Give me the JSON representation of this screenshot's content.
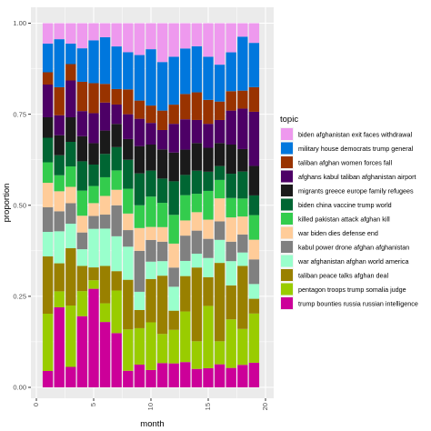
{
  "chart_data": {
    "type": "bar",
    "stacked": true,
    "title": "",
    "xlabel": "month",
    "ylabel": "proportion",
    "xlim": [
      0,
      20
    ],
    "ylim": [
      0,
      1
    ],
    "x_ticks": [
      "0",
      "5",
      "10",
      "15",
      "20"
    ],
    "y_ticks": [
      "0.00",
      "0.25",
      "0.50",
      "0.75",
      "1.00"
    ],
    "legend_title": "topic",
    "legend_position": "right",
    "x": [
      1,
      2,
      3,
      4,
      5,
      6,
      7,
      8,
      9,
      10,
      11,
      12,
      13,
      14,
      15,
      16,
      17,
      18,
      19
    ],
    "series": [
      {
        "name": "trump bounties russia russian intelligence",
        "color": "#cc0099",
        "values": [
          0.04,
          0.2,
          0.05,
          0.17,
          0.23,
          0.14,
          0.14,
          0.04,
          0.05,
          0.04,
          0.05,
          0.05,
          0.05,
          0.04,
          0.04,
          0.05,
          0.04,
          0.05,
          0.05
        ]
      },
      {
        "name": "pentagon troops trump somalia judge",
        "color": "#99cc00",
        "values": [
          0.14,
          0.04,
          0.15,
          0.06,
          0.02,
          0.04,
          0.11,
          0.1,
          0.08,
          0.11,
          0.06,
          0.07,
          0.1,
          0.06,
          0.13,
          0.05,
          0.1,
          0.08,
          0.1
        ]
      },
      {
        "name": "taliban peace talks afghan deal",
        "color": "#998000",
        "values": [
          0.14,
          0.07,
          0.14,
          0.06,
          0.03,
          0.08,
          0.05,
          0.12,
          0.04,
          0.1,
          0.12,
          0.04,
          0.07,
          0.16,
          0.06,
          0.17,
          0.07,
          0.14,
          0.03
        ]
      },
      {
        "name": "war afghanistan afghan world america",
        "color": "#99ffcc",
        "values": [
          0.06,
          0.08,
          0.06,
          0.04,
          0.09,
          0.08,
          0.09,
          0.08,
          0.04,
          0.04,
          0.03,
          0.05,
          0.03,
          0.03,
          0.04,
          0.05,
          0.05,
          0.03,
          0.03
        ]
      },
      {
        "name": "kabul power drone afghan afghanistan",
        "color": "#808080",
        "values": [
          0.06,
          0.05,
          0.05,
          0.04,
          0.03,
          0.03,
          0.08,
          0.04,
          0.09,
          0.05,
          0.04,
          0.04,
          0.05,
          0.05,
          0.04,
          0.04,
          0.04,
          0.04,
          0.05
        ]
      },
      {
        "name": "war biden dies defense end",
        "color": "#ffcc99",
        "values": [
          0.06,
          0.05,
          0.04,
          0.04,
          0.03,
          0.04,
          0.04,
          0.04,
          0.05,
          0.03,
          0.03,
          0.05,
          0.03,
          0.04,
          0.04,
          0.05,
          0.05,
          0.04,
          0.04
        ]
      },
      {
        "name": "killed pakistan attack afghan kill",
        "color": "#33cc4d",
        "values": [
          0.05,
          0.04,
          0.05,
          0.06,
          0.04,
          0.04,
          0.05,
          0.06,
          0.05,
          0.07,
          0.05,
          0.06,
          0.05,
          0.04,
          0.06,
          0.04,
          0.04,
          0.04,
          0.05
        ]
      },
      {
        "name": "biden china vaccine trump world",
        "color": "#006633",
        "values": [
          0.06,
          0.05,
          0.06,
          0.07,
          0.05,
          0.05,
          0.06,
          0.07,
          0.07,
          0.06,
          0.05,
          0.07,
          0.04,
          0.05,
          0.04,
          0.03,
          0.05,
          0.06,
          0.04
        ]
      },
      {
        "name": "migrants greece europe family refugees",
        "color": "#1a1a1a",
        "values": [
          0.05,
          0.05,
          0.06,
          0.06,
          0.05,
          0.05,
          0.06,
          0.05,
          0.06,
          0.06,
          0.06,
          0.06,
          0.05,
          0.06,
          0.05,
          0.05,
          0.06,
          0.05,
          0.06
        ]
      },
      {
        "name": "afghans kabul taliban afghanistan airport",
        "color": "#4d0066",
        "values": [
          0.08,
          0.05,
          0.09,
          0.06,
          0.07,
          0.06,
          0.05,
          0.06,
          0.06,
          0.05,
          0.04,
          0.06,
          0.06,
          0.05,
          0.05,
          0.05,
          0.07,
          0.09,
          0.11
        ]
      },
      {
        "name": "taliban afghan women forces fall",
        "color": "#993300",
        "values": [
          0.03,
          0.07,
          0.04,
          0.07,
          0.07,
          0.04,
          0.04,
          0.06,
          0.04,
          0.04,
          0.04,
          0.04,
          0.05,
          0.06,
          0.05,
          0.04,
          0.04,
          0.04,
          0.05
        ]
      },
      {
        "name": "military house democrats trump general",
        "color": "#0077dd",
        "values": [
          0.07,
          0.12,
          0.05,
          0.08,
          0.1,
          0.1,
          0.11,
          0.09,
          0.1,
          0.13,
          0.1,
          0.1,
          0.09,
          0.1,
          0.09,
          0.08,
          0.08,
          0.12,
          0.09
        ]
      },
      {
        "name": "biden afghanistan exit faces withdrawal",
        "color": "#ee99ee",
        "values": [
          0.05,
          0.04,
          0.05,
          0.06,
          0.04,
          0.03,
          0.06,
          0.07,
          0.07,
          0.06,
          0.08,
          0.07,
          0.05,
          0.05,
          0.07,
          0.09,
          0.06,
          0.03,
          0.04
        ]
      }
    ]
  }
}
